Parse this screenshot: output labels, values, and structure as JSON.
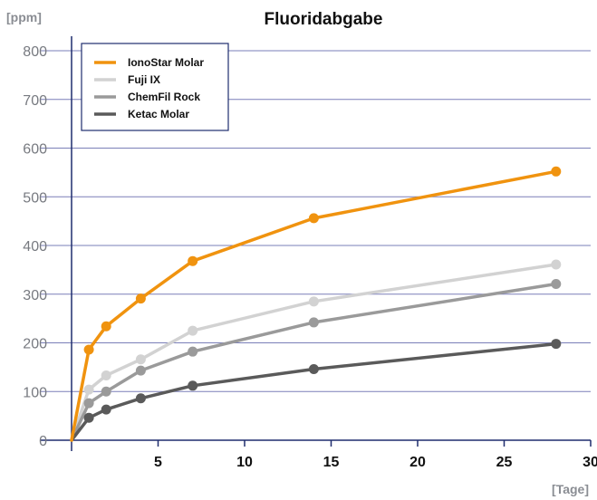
{
  "chart_data": {
    "type": "line",
    "title": "Fluoridabgabe",
    "ylabel": "[ppm]",
    "xlabel": "[Tage]",
    "xlim": [
      0,
      30
    ],
    "ylim": [
      0,
      800
    ],
    "x_ticks": [
      5,
      10,
      15,
      20,
      25,
      30
    ],
    "y_ticks": [
      0,
      100,
      200,
      300,
      400,
      500,
      600,
      700,
      800
    ],
    "grid": "horizontal",
    "legend_position": "top-left",
    "series": [
      {
        "name": "IonoStar Molar",
        "color": "#f0930f",
        "points": [
          [
            0,
            0
          ],
          [
            1,
            186
          ],
          [
            2,
            234
          ],
          [
            4,
            291
          ],
          [
            7,
            368
          ],
          [
            14,
            456
          ],
          [
            28,
            552
          ]
        ]
      },
      {
        "name": "Fuji IX",
        "color": "#d2d2d2",
        "points": [
          [
            0,
            0
          ],
          [
            1,
            104
          ],
          [
            2,
            133
          ],
          [
            4,
            166
          ],
          [
            7,
            225
          ],
          [
            14,
            285
          ],
          [
            28,
            361
          ]
        ]
      },
      {
        "name": "ChemFil Rock",
        "color": "#9a9a9a",
        "points": [
          [
            0,
            0
          ],
          [
            1,
            76
          ],
          [
            2,
            100
          ],
          [
            4,
            143
          ],
          [
            7,
            182
          ],
          [
            14,
            242
          ],
          [
            28,
            321
          ]
        ]
      },
      {
        "name": "Ketac Molar",
        "color": "#5a5a5a",
        "points": [
          [
            0,
            0
          ],
          [
            1,
            46
          ],
          [
            2,
            63
          ],
          [
            4,
            86
          ],
          [
            7,
            112
          ],
          [
            14,
            146
          ],
          [
            28,
            198
          ]
        ]
      }
    ]
  }
}
